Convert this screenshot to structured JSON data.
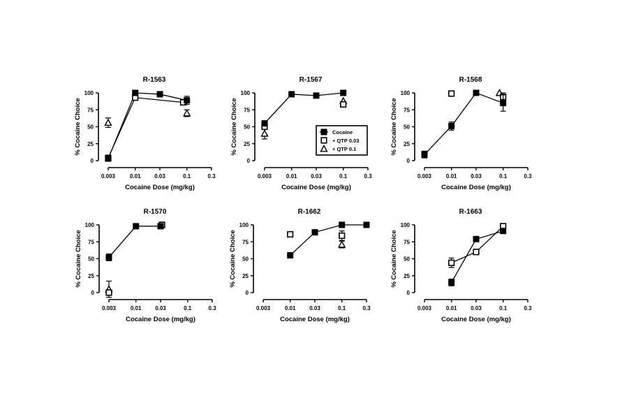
{
  "chart_data": [
    {
      "type": "line",
      "title": "R-1563",
      "xlabel": "Cocaine Dose (mg/kg)",
      "ylabel": "% Cocaine Choice",
      "xscale": "log",
      "xticks": [
        "0.003",
        "0.01",
        "0.03",
        "0.1",
        "0.3"
      ],
      "yticks": [
        "0",
        "25",
        "50",
        "75",
        "100"
      ],
      "ylim": [
        0,
        100
      ],
      "series": [
        {
          "name": "Cocaine",
          "marker": "filled-square",
          "connected": true,
          "points": [
            {
              "x": 0.003,
              "y": 3
            },
            {
              "x": 0.01,
              "y": 100
            },
            {
              "x": 0.03,
              "y": 98
            },
            {
              "x": 0.1,
              "y": 89,
              "err": 6
            }
          ]
        },
        {
          "name": "+ QTP 0.03",
          "marker": "open-square",
          "connected": true,
          "points": [
            {
              "x": 0.003,
              "y": 4
            },
            {
              "x": 0.01,
              "y": 93
            },
            {
              "x": 0.085,
              "y": 86
            }
          ]
        },
        {
          "name": "+ QTP 0.1",
          "marker": "open-triangle",
          "connected": false,
          "points": [
            {
              "x": 0.003,
              "y": 56,
              "err": 7
            },
            {
              "x": 0.1,
              "y": 70,
              "err": 5
            }
          ]
        }
      ]
    },
    {
      "type": "line",
      "title": "R-1567",
      "xlabel": "Cocaine Dose (mg/kg)",
      "ylabel": "% Cocaine Choice",
      "xscale": "log",
      "xticks": [
        "0.003",
        "0.01",
        "0.03",
        "0.1",
        "0.3"
      ],
      "yticks": [
        "0",
        "25",
        "50",
        "75",
        "100"
      ],
      "ylim": [
        0,
        100
      ],
      "legend": {
        "placement": "right",
        "entries": [
          "Cocaine",
          "+ QTP 0.03",
          "+ QTP 0.1"
        ]
      },
      "series": [
        {
          "name": "Cocaine",
          "marker": "filled-square",
          "connected": true,
          "points": [
            {
              "x": 0.003,
              "y": 55
            },
            {
              "x": 0.01,
              "y": 98
            },
            {
              "x": 0.03,
              "y": 96
            },
            {
              "x": 0.1,
              "y": 100
            }
          ]
        },
        {
          "name": "+ QTP 0.03",
          "marker": "open-square",
          "connected": false,
          "points": [
            {
              "x": 0.003,
              "y": 50
            },
            {
              "x": 0.1,
              "y": 83,
              "err": 4
            }
          ]
        },
        {
          "name": "+ QTP 0.1",
          "marker": "open-triangle",
          "connected": false,
          "points": [
            {
              "x": 0.003,
              "y": 40,
              "err": 8
            },
            {
              "x": 0.1,
              "y": 88
            }
          ]
        }
      ]
    },
    {
      "type": "line",
      "title": "R-1568",
      "xlabel": "Cocaine Dose (mg/kg)",
      "ylabel": "% Cocaine Choice",
      "xscale": "log",
      "xticks": [
        "0.003",
        "0.01",
        "0.03",
        "0.1",
        "0.3"
      ],
      "yticks": [
        "0",
        "25",
        "50",
        "75",
        "100"
      ],
      "ylim": [
        0,
        100
      ],
      "series": [
        {
          "name": "Cocaine",
          "marker": "filled-square",
          "connected": true,
          "points": [
            {
              "x": 0.003,
              "y": 9,
              "err": 5
            },
            {
              "x": 0.01,
              "y": 51,
              "err": 6
            },
            {
              "x": 0.03,
              "y": 100
            },
            {
              "x": 0.1,
              "y": 85,
              "err": 12
            }
          ]
        },
        {
          "name": "+ QTP 0.03",
          "marker": "open-square",
          "connected": false,
          "points": [
            {
              "x": 0.01,
              "y": 99
            },
            {
              "x": 0.1,
              "y": 94,
              "err": 6
            }
          ]
        },
        {
          "name": "+ QTP 0.1",
          "marker": "open-triangle",
          "connected": false,
          "points": [
            {
              "x": 0.085,
              "y": 100
            }
          ]
        }
      ]
    },
    {
      "type": "line",
      "title": "R-1570",
      "xlabel": "Cocaine Dose (mg/kg)",
      "ylabel": "% Cocaine Choice",
      "xscale": "log",
      "xticks": [
        "0.003",
        "0.01",
        "0.03",
        "0.1",
        "0.3"
      ],
      "yticks": [
        "0",
        "25",
        "50",
        "75",
        "100"
      ],
      "ylim": [
        0,
        100
      ],
      "series": [
        {
          "name": "Cocaine",
          "marker": "filled-square",
          "connected": true,
          "points": [
            {
              "x": 0.003,
              "y": 52,
              "err": 5
            },
            {
              "x": 0.01,
              "y": 98
            },
            {
              "x": 0.03,
              "y": 98
            }
          ]
        },
        {
          "name": "+ QTP 0.03",
          "marker": "open-square",
          "connected": false,
          "points": [
            {
              "x": 0.003,
              "y": 0
            },
            {
              "x": 0.032,
              "y": 100
            }
          ]
        },
        {
          "name": "+ QTP 0.1",
          "marker": "open-triangle",
          "connected": false,
          "points": [
            {
              "x": 0.003,
              "y": 5,
              "err": 12
            }
          ]
        }
      ]
    },
    {
      "type": "line",
      "title": "R-1662",
      "xlabel": "Cocaine Dose (mg/kg)",
      "ylabel": "% Cocaine Choice",
      "xscale": "log",
      "xticks": [
        "0.003",
        "0.01",
        "0.03",
        "0.1",
        "0.3"
      ],
      "yticks": [
        "0",
        "25",
        "50",
        "75",
        "100"
      ],
      "ylim": [
        0,
        100
      ],
      "series": [
        {
          "name": "Cocaine",
          "marker": "filled-square",
          "connected": true,
          "points": [
            {
              "x": 0.01,
              "y": 55
            },
            {
              "x": 0.03,
              "y": 89
            },
            {
              "x": 0.1,
              "y": 100
            },
            {
              "x": 0.3,
              "y": 100
            }
          ]
        },
        {
          "name": "+ QTP 0.03",
          "marker": "open-square",
          "connected": false,
          "points": [
            {
              "x": 0.01,
              "y": 86
            },
            {
              "x": 0.1,
              "y": 84,
              "err": 7
            }
          ]
        },
        {
          "name": "+ QTP 0.1",
          "marker": "open-triangle",
          "connected": false,
          "points": [
            {
              "x": 0.1,
              "y": 71,
              "err": 5
            }
          ]
        }
      ]
    },
    {
      "type": "line",
      "title": "R-1663",
      "xlabel": "Cocaine Dose (mg/kg)",
      "ylabel": "% Cocaine Choice",
      "xscale": "log",
      "xticks": [
        "0.003",
        "0.01",
        "0.03",
        "0.1",
        "0.3"
      ],
      "yticks": [
        "0",
        "25",
        "50",
        "75",
        "100"
      ],
      "ylim": [
        0,
        100
      ],
      "series": [
        {
          "name": "Cocaine",
          "marker": "filled-square",
          "connected": true,
          "points": [
            {
              "x": 0.01,
              "y": 15,
              "err": 5
            },
            {
              "x": 0.03,
              "y": 79
            },
            {
              "x": 0.1,
              "y": 91
            }
          ]
        },
        {
          "name": "+ QTP 0.03",
          "marker": "open-square",
          "connected": true,
          "points": [
            {
              "x": 0.01,
              "y": 44,
              "err": 7
            },
            {
              "x": 0.03,
              "y": 60
            },
            {
              "x": 0.1,
              "y": 98
            }
          ]
        }
      ]
    }
  ]
}
